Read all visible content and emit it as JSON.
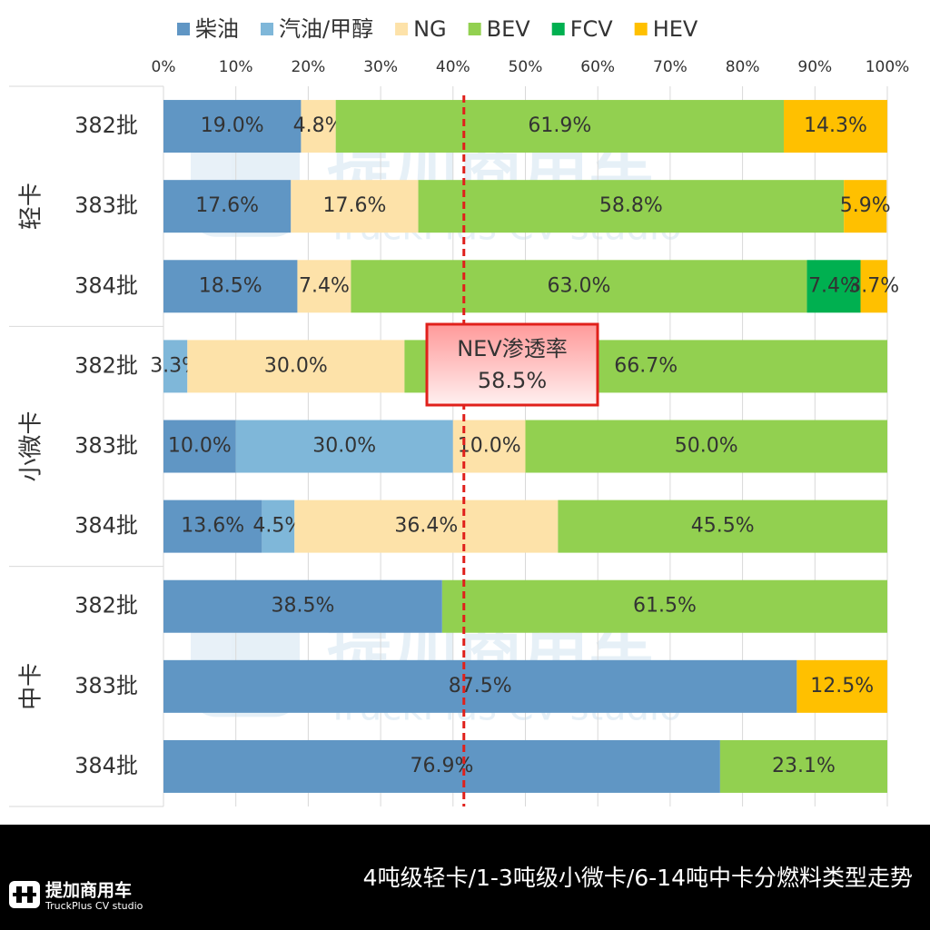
{
  "chart_data": {
    "type": "stacked-bar-horizontal",
    "legend_position": "top",
    "groups": [
      {
        "name": "轻卡",
        "categories": [
          "382批",
          "383批",
          "384批"
        ]
      },
      {
        "name": "小微卡",
        "categories": [
          "382批",
          "383批",
          "384批"
        ]
      },
      {
        "name": "中卡",
        "categories": [
          "382批",
          "383批",
          "384批"
        ]
      }
    ],
    "series": [
      {
        "name": "柴油",
        "color": "#6096c4",
        "values": [
          19.0,
          17.6,
          18.5,
          null,
          10.0,
          13.6,
          38.5,
          87.5,
          76.9
        ],
        "value_labels": [
          "19.0%",
          "17.6%",
          "18.5%",
          null,
          "10.0%",
          "13.6%",
          "38.5%",
          "87.5%",
          "76.9%"
        ]
      },
      {
        "name": "汽油/甲醇",
        "color": "#7fb7d9",
        "values": [
          null,
          null,
          null,
          3.3,
          30.0,
          4.5,
          null,
          null,
          null
        ],
        "value_labels": [
          null,
          null,
          null,
          "3.3%",
          "30.0%",
          "4.5%",
          null,
          null,
          null
        ]
      },
      {
        "name": "NG",
        "color": "#fde2a9",
        "values": [
          4.8,
          17.6,
          7.4,
          30.0,
          10.0,
          36.4,
          null,
          null,
          null
        ],
        "value_labels": [
          "4.8%",
          "17.6%",
          "7.4%",
          "30.0%",
          "10.0%",
          "36.4%",
          null,
          null,
          null
        ]
      },
      {
        "name": "BEV",
        "color": "#92d050",
        "values": [
          61.9,
          58.8,
          63.0,
          66.7,
          50.0,
          45.5,
          61.5,
          null,
          23.1
        ],
        "value_labels": [
          "61.9%",
          "58.8%",
          "63.0%",
          "66.7%",
          "50.0%",
          "45.5%",
          "61.5%",
          null,
          "23.1%"
        ]
      },
      {
        "name": "FCV",
        "color": "#00b050",
        "values": [
          null,
          null,
          7.4,
          null,
          null,
          null,
          null,
          null,
          null
        ],
        "value_labels": [
          null,
          null,
          "7.4%",
          null,
          null,
          null,
          null,
          null,
          null
        ]
      },
      {
        "name": "HEV",
        "color": "#ffc000",
        "values": [
          14.3,
          5.9,
          3.7,
          null,
          null,
          null,
          null,
          12.5,
          null
        ],
        "value_labels": [
          "14.3%",
          "5.9%",
          "3.7%",
          null,
          null,
          null,
          null,
          "12.5%",
          null
        ]
      }
    ],
    "xlim": [
      0,
      100
    ],
    "xticks": [
      {
        "value": 0,
        "label": "0%"
      },
      {
        "value": 10,
        "label": "10%"
      },
      {
        "value": 20,
        "label": "20%"
      },
      {
        "value": 30,
        "label": "30%"
      },
      {
        "value": 40,
        "label": "40%"
      },
      {
        "value": 50,
        "label": "50%"
      },
      {
        "value": 60,
        "label": "60%"
      },
      {
        "value": 70,
        "label": "70%"
      },
      {
        "value": 80,
        "label": "80%"
      },
      {
        "value": 90,
        "label": "90%"
      },
      {
        "value": 100,
        "label": "100%"
      }
    ],
    "grid": true,
    "annotation": {
      "text": "NEV渗透率",
      "value": 58.5,
      "label": "58.5%"
    },
    "watermark": {
      "text": "提加商用车",
      "subtext": "TruckPlus CV studio"
    },
    "footer": {
      "title": "4吨级轻卡/1-3吨级小微卡/6-14吨中卡分燃料类型走势",
      "logo": "提加商用车",
      "logo_subtext": "TruckPlus CV studio"
    }
  }
}
